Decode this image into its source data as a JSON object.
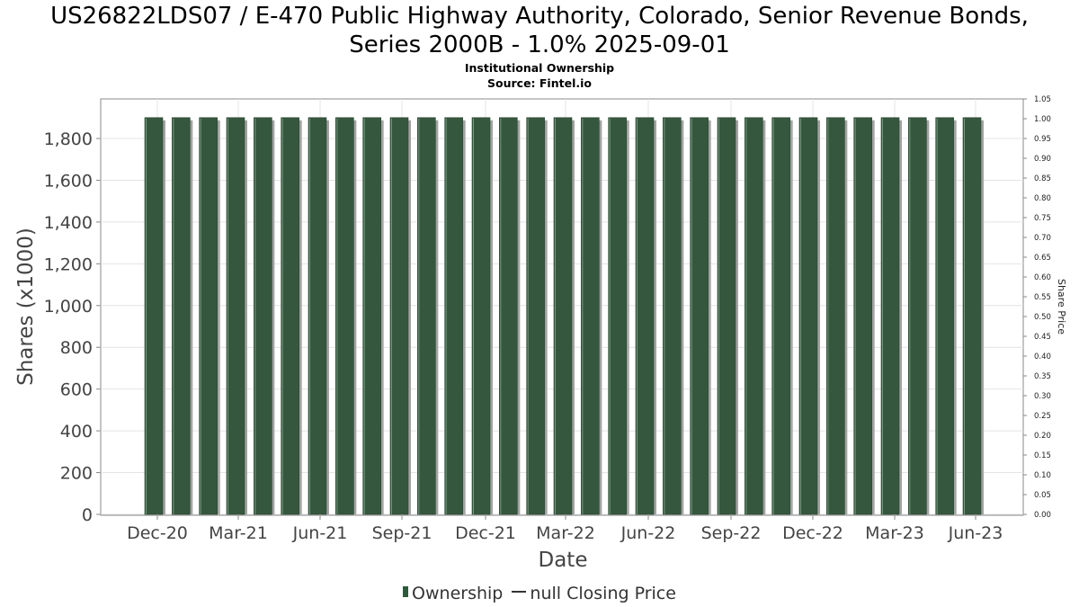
{
  "titles": {
    "line1": "US26822LDS07 / E-470 Public Highway Authority, Colorado, Senior Revenue Bonds,",
    "line2": "Series 2000B - 1.0% 2025-09-01",
    "subtitle": "Institutional Ownership",
    "source": "Source: Fintel.io"
  },
  "legend": {
    "ownership": "Ownership",
    "price": "null Closing Price"
  },
  "colors": {
    "bar": "#35573e",
    "bar_shadow": "#a3a3a3",
    "grid": "#e4e4e4",
    "axis_text": "#444444"
  },
  "chart_data": {
    "type": "bar",
    "title": "US26822LDS07 / E-470 Public Highway Authority, Colorado, Senior Revenue Bonds, Series 2000B - 1.0% 2025-09-01",
    "xlabel": "Date",
    "ylabel": "Shares (x1000)",
    "y2label": "Share Price",
    "ylim": [
      0,
      1900
    ],
    "y2lim": [
      0,
      1.05
    ],
    "yticks": [
      "0",
      "200",
      "400",
      "600",
      "800",
      "1,000",
      "1,200",
      "1,400",
      "1,600",
      "1,800"
    ],
    "y2ticks": [
      "0.00",
      "0.05",
      "0.10",
      "0.15",
      "0.20",
      "0.25",
      "0.30",
      "0.35",
      "0.40",
      "0.45",
      "0.50",
      "0.55",
      "0.60",
      "0.65",
      "0.70",
      "0.75",
      "0.80",
      "0.85",
      "0.90",
      "0.95",
      "1.00",
      "1.05"
    ],
    "xtick_labels": [
      "Dec-20",
      "Mar-21",
      "Jun-21",
      "Sep-21",
      "Dec-21",
      "Mar-22",
      "Jun-22",
      "Sep-22",
      "Dec-22",
      "Mar-23",
      "Jun-23"
    ],
    "series": [
      {
        "name": "Ownership",
        "values": [
          1900,
          1900,
          1900,
          1900,
          1900,
          1900,
          1900,
          1900,
          1900,
          1900,
          1900,
          1900,
          1900,
          1900,
          1900,
          1900,
          1900,
          1900,
          1900,
          1900,
          1900,
          1900,
          1900,
          1900,
          1900,
          1900,
          1900,
          1900,
          1900,
          1900,
          1900
        ]
      }
    ],
    "grid": true,
    "legend_position": "bottom"
  }
}
